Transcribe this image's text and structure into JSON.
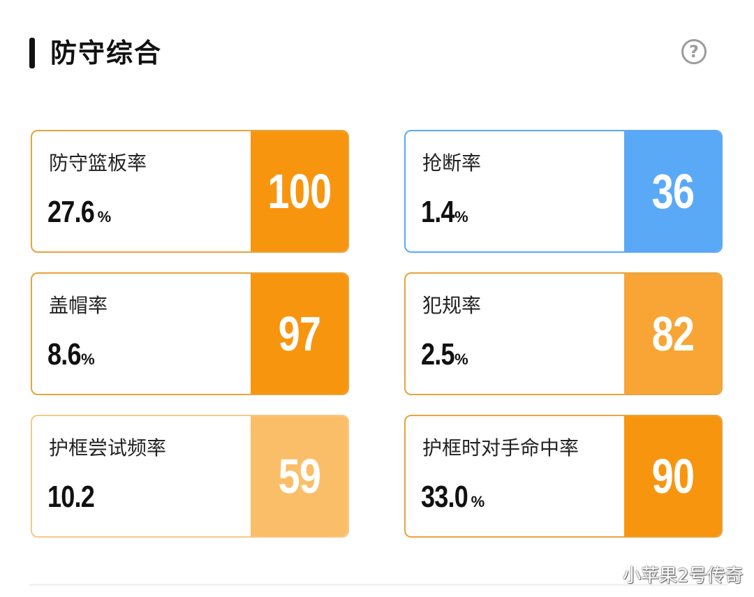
{
  "header": {
    "title": "防守综合",
    "help_icon": "question-circle-icon",
    "help_glyph": "?"
  },
  "colors": {
    "card_border": "#e8a33c",
    "orange_strong": "#f8950f",
    "orange_mid": "#f8a535",
    "orange_light": "#fbbe68",
    "blue": "#5aa9f7"
  },
  "cards": [
    {
      "label": "防守篮板率",
      "value": "27.6",
      "unit": "%",
      "score": "100",
      "score_color": "#f8950f",
      "border_color": "#e8a33c"
    },
    {
      "label": "抢断率",
      "value": "1.4",
      "unit": "%",
      "score": "36",
      "score_color": "#5aa9f7",
      "border_color": "#5aa9f7"
    },
    {
      "label": "盖帽率",
      "value": "8.6",
      "unit": "%",
      "score": "97",
      "score_color": "#f8950f",
      "border_color": "#e8a33c"
    },
    {
      "label": "犯规率",
      "value": "2.5",
      "unit": "%",
      "score": "82",
      "score_color": "#f8a535",
      "border_color": "#e8a33c"
    },
    {
      "label": "护框尝试频率",
      "value": "10.2",
      "unit": "",
      "score": "59",
      "score_color": "#fbbe68",
      "border_color": "#f5c887"
    },
    {
      "label": "护框时对手命中率",
      "value": "33.0",
      "unit": "%",
      "score": "90",
      "score_color": "#f8950f",
      "border_color": "#e8a33c"
    }
  ],
  "watermark": "小苹果2号传奇"
}
